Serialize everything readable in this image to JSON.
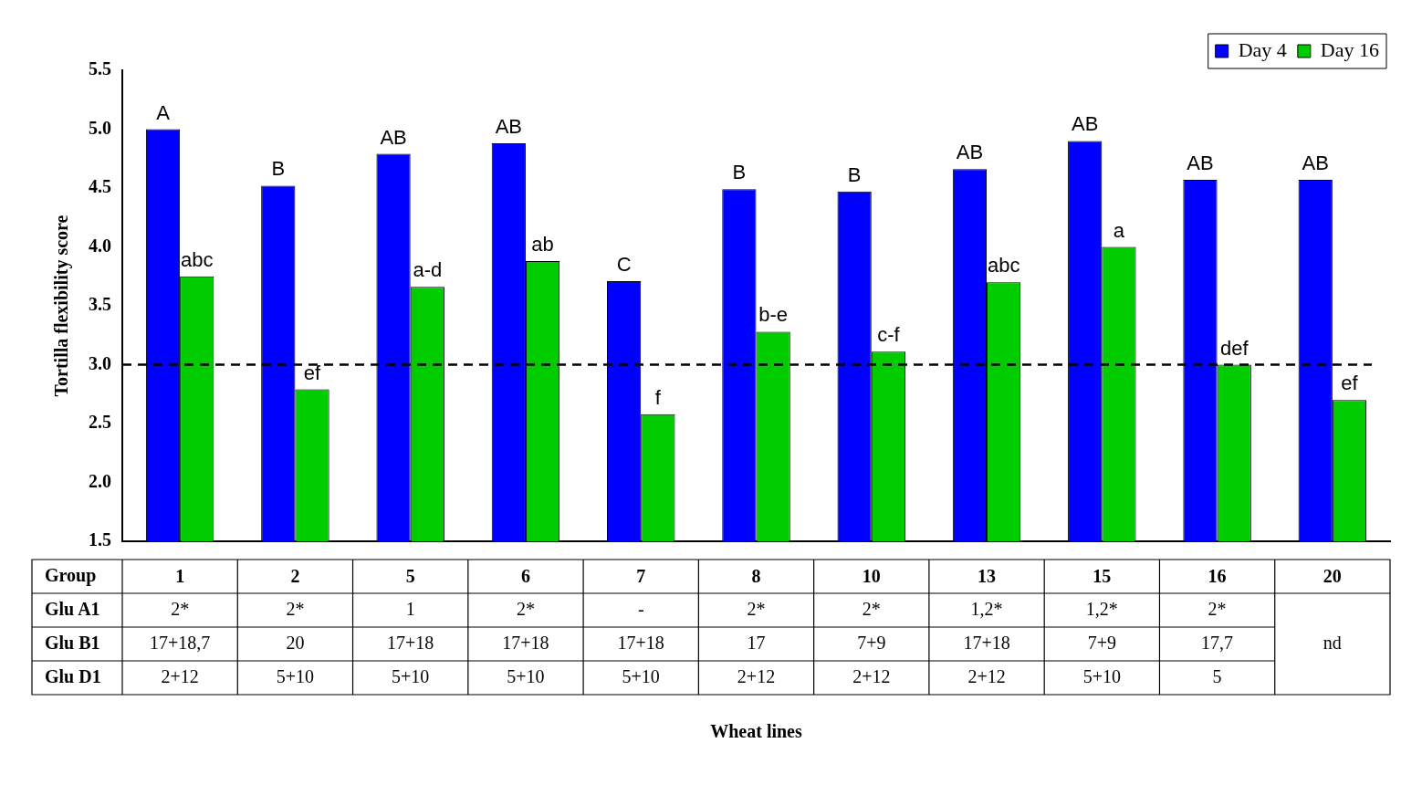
{
  "chart_data": {
    "type": "bar",
    "ylabel": "Tortilla flexibility score",
    "categories": [
      "1",
      "2",
      "5",
      "6",
      "7",
      "8",
      "10",
      "13",
      "15",
      "16",
      "20"
    ],
    "series": [
      {
        "name": "Day 4",
        "color": "#0000ff",
        "values": [
          5.0,
          4.52,
          4.79,
          4.88,
          3.71,
          4.49,
          4.47,
          4.66,
          4.9,
          4.57,
          4.57
        ],
        "value_labels": [
          "A",
          "B",
          "AB",
          "AB",
          "C",
          "B",
          "B",
          "AB",
          "AB",
          "AB",
          "AB"
        ]
      },
      {
        "name": "Day 16",
        "color": "#00cc00",
        "values": [
          3.75,
          2.79,
          3.66,
          3.88,
          2.58,
          3.28,
          3.11,
          3.7,
          4.0,
          3.0,
          2.7
        ],
        "value_labels": [
          "abc",
          "ef",
          "a-d",
          "ab",
          "f",
          "b-e",
          "c-f",
          "abc",
          "a",
          "def",
          "ef"
        ]
      }
    ],
    "ylim": [
      1.5,
      5.5
    ],
    "yticks": [
      {
        "value": 1.5,
        "label": "1.5"
      },
      {
        "value": 2,
        "label": "2.0"
      },
      {
        "value": 2.5,
        "label": "2.5"
      },
      {
        "value": 3,
        "label": "3.0"
      },
      {
        "value": 3.5,
        "label": "3.5"
      },
      {
        "value": 4,
        "label": "4.0"
      },
      {
        "value": 4.5,
        "label": "4.5"
      },
      {
        "value": 5,
        "label": "5.0"
      },
      {
        "value": 5.5,
        "label": "5.5"
      }
    ],
    "ref_lines": [
      {
        "axis": "y",
        "value": 3.0,
        "color": "#000000",
        "line_style": "dashed"
      }
    ],
    "grid": false,
    "legend": "top right",
    "annotations": [
      "Group",
      "Glu A1",
      {
        "text": "2*",
        "x": "1"
      },
      {
        "text": "2*",
        "x": "2"
      },
      {
        "text": "1",
        "x": "5"
      },
      {
        "text": "2*",
        "x": "6"
      },
      {
        "text": "-",
        "x": "7"
      },
      {
        "text": "2*",
        "x": "8"
      },
      {
        "text": "2*",
        "x": "10"
      },
      {
        "text": "1,2*",
        "x": "13"
      },
      {
        "text": "1,2*",
        "x": "15"
      },
      {
        "text": "2*",
        "x": "16"
      },
      "Glu B1",
      {
        "text": "17+18,7",
        "x": "1"
      },
      {
        "text": "20",
        "x": "2"
      },
      {
        "text": "17+18",
        "x": "5"
      },
      {
        "text": "17+18",
        "x": "6"
      },
      {
        "text": "17+18",
        "x": "7"
      },
      {
        "text": "17",
        "x": "8"
      },
      {
        "text": "7+9",
        "x": "10"
      },
      {
        "text": "17+18",
        "x": "13"
      },
      {
        "text": "7+9",
        "x": "15"
      },
      {
        "text": "17,7",
        "x": "16"
      },
      {
        "text": "nd",
        "x": "20"
      },
      "Glu D1",
      {
        "text": "2+12",
        "x": "1"
      },
      {
        "text": "5+10",
        "x": "2"
      },
      {
        "text": "5+10",
        "x": "5"
      },
      {
        "text": "5+10",
        "x": "6"
      },
      {
        "text": "5+10",
        "x": "7"
      },
      {
        "text": "2+12",
        "x": "8"
      },
      {
        "text": "2+12",
        "x": "10"
      },
      {
        "text": "2+12",
        "x": "13"
      },
      {
        "text": "5+10",
        "x": "15"
      },
      {
        "text": "5",
        "x": "16"
      },
      "Wheat lines"
    ]
  }
}
